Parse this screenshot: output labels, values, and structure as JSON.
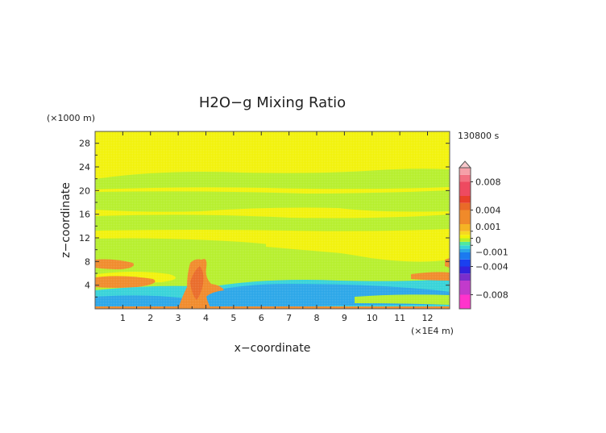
{
  "chart_data": {
    "type": "heatmap",
    "title": "H2O−g Mixing Ratio",
    "xlabel": "x−coordinate",
    "ylabel": "z−coordinate",
    "x_unit": "(×1E4 m)",
    "y_unit": "(×1000 m)",
    "time_label": "130800 s",
    "xlim": [
      0,
      12.8
    ],
    "ylim": [
      0,
      30
    ],
    "x_ticks": [
      "1",
      "2",
      "3",
      "4",
      "5",
      "6",
      "7",
      "8",
      "9",
      "10",
      "11",
      "12"
    ],
    "y_ticks": [
      "4",
      "8",
      "12",
      "16",
      "20",
      "24",
      "28"
    ],
    "colorbar": {
      "range": [
        -0.01,
        0.01
      ],
      "tick_values": [
        0.008,
        0.004,
        0.001,
        0,
        -0.001,
        -0.004,
        -0.008
      ],
      "tick_labels": [
        "0.008",
        "0.004",
        "0.001",
        "0",
        "−0.001",
        "−0.004",
        "−0.008"
      ]
    },
    "field_regions": [
      {
        "value": 0.0,
        "color": "#f2f20a",
        "description": "background"
      },
      {
        "value": -0.0005,
        "color": "#b6ef2c"
      },
      {
        "value": -0.002,
        "color": "#2aa6e8"
      },
      {
        "value": -0.0015,
        "color": "#36d3d8"
      },
      {
        "value": 0.003,
        "color": "#f08a2a"
      },
      {
        "value": 0.0045,
        "color": "#e96a28"
      }
    ]
  }
}
